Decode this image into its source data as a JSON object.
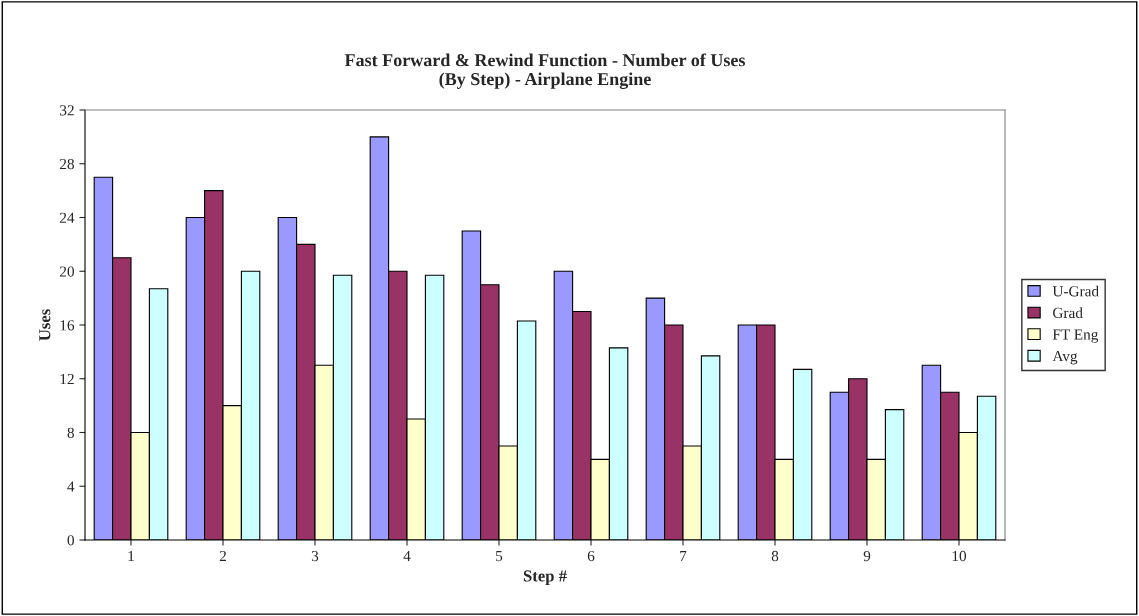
{
  "chart_data": {
    "type": "bar",
    "title": "Fast Forward & Rewind Function - Number of Uses\n(By Step) - Airplane Engine",
    "xlabel": "Step #",
    "ylabel": "Uses",
    "categories": [
      "1",
      "2",
      "3",
      "4",
      "5",
      "6",
      "7",
      "8",
      "9",
      "10"
    ],
    "series": [
      {
        "name": "U-Grad",
        "color": "#9999ff",
        "values": [
          27,
          24,
          24,
          30,
          23,
          20,
          18,
          16,
          11,
          13
        ]
      },
      {
        "name": "Grad",
        "color": "#993366",
        "values": [
          21,
          26,
          22,
          20,
          19,
          17,
          16,
          16,
          12,
          11
        ]
      },
      {
        "name": "FT Eng",
        "color": "#ffffcc",
        "values": [
          8,
          10,
          13,
          9,
          7,
          6,
          7,
          6,
          6,
          8
        ]
      },
      {
        "name": "Avg",
        "color": "#ccffff",
        "values": [
          18.7,
          20,
          19.7,
          19.7,
          16.3,
          14.3,
          13.7,
          12.7,
          9.7,
          10.7
        ]
      }
    ],
    "ylim": [
      0,
      32
    ],
    "yticks": [
      0,
      4,
      8,
      12,
      16,
      20,
      24,
      28,
      32
    ],
    "grid": false,
    "legend": "right"
  }
}
